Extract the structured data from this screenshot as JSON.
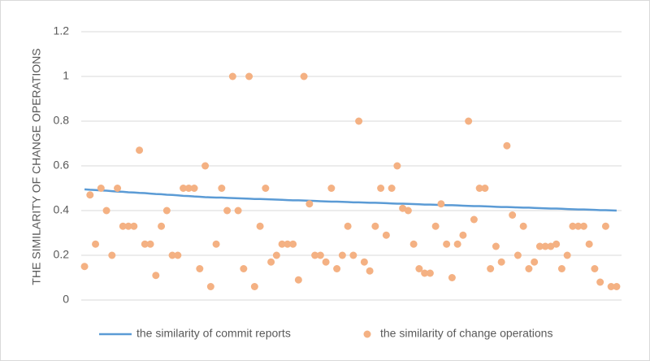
{
  "chart_data": {
    "type": "combo",
    "y_label": "THE SIMILARITY OF CHANGE OPERATIONS",
    "x": [
      1,
      2,
      3,
      4,
      5,
      6,
      7,
      8,
      9,
      10,
      11,
      12,
      13,
      14,
      15,
      16,
      17,
      18,
      19,
      20,
      21,
      22,
      23,
      24,
      25,
      26,
      27,
      28,
      29,
      30,
      31,
      32,
      33,
      34,
      35,
      36,
      37,
      38,
      39,
      40,
      41,
      42,
      43,
      44,
      45,
      46,
      47,
      48,
      49,
      50,
      51,
      52,
      53,
      54,
      55,
      56,
      57,
      58,
      59,
      60,
      61,
      62,
      63,
      64,
      65,
      66,
      67,
      68,
      69,
      70,
      71,
      72,
      73,
      74,
      75,
      76,
      77,
      78,
      79,
      80,
      81,
      82,
      83,
      84,
      85,
      86,
      87,
      88,
      89,
      90,
      91,
      92,
      93,
      94,
      95,
      96,
      97,
      98
    ],
    "xlim": [
      0.4,
      98.9
    ],
    "ylim": [
      0,
      1.2
    ],
    "yticks": [
      0,
      0.2,
      0.4,
      0.6,
      0.8,
      1,
      1.2
    ],
    "grid": true,
    "legend": "bottom",
    "series": [
      {
        "name": "the similarity of commit reports",
        "type": "line",
        "color": "#5b9bd5",
        "values": [
          0.495,
          0.493,
          0.492,
          0.49,
          0.489,
          0.487,
          0.485,
          0.484,
          0.482,
          0.481,
          0.479,
          0.478,
          0.476,
          0.474,
          0.473,
          0.471,
          0.47,
          0.468,
          0.466,
          0.465,
          0.463,
          0.462,
          0.46,
          0.459,
          0.458,
          0.458,
          0.457,
          0.456,
          0.455,
          0.454,
          0.453,
          0.452,
          0.452,
          0.451,
          0.45,
          0.449,
          0.448,
          0.447,
          0.446,
          0.446,
          0.445,
          0.444,
          0.443,
          0.442,
          0.441,
          0.44,
          0.44,
          0.439,
          0.438,
          0.437,
          0.437,
          0.436,
          0.435,
          0.435,
          0.434,
          0.433,
          0.432,
          0.431,
          0.431,
          0.43,
          0.429,
          0.428,
          0.427,
          0.427,
          0.426,
          0.425,
          0.424,
          0.424,
          0.423,
          0.422,
          0.421,
          0.42,
          0.42,
          0.419,
          0.418,
          0.417,
          0.416,
          0.416,
          0.415,
          0.414,
          0.413,
          0.413,
          0.412,
          0.411,
          0.41,
          0.409,
          0.409,
          0.408,
          0.407,
          0.406,
          0.405,
          0.405,
          0.404,
          0.403,
          0.402,
          0.402,
          0.401,
          0.4
        ]
      },
      {
        "name": "the similarity of change operations",
        "type": "scatter",
        "color": "#f4b183",
        "values": [
          0.15,
          0.47,
          0.25,
          0.5,
          0.4,
          0.2,
          0.5,
          0.33,
          0.33,
          0.33,
          0.67,
          0.25,
          0.25,
          0.11,
          0.33,
          0.4,
          0.2,
          0.2,
          0.5,
          0.5,
          0.5,
          0.14,
          0.6,
          0.06,
          0.25,
          0.5,
          0.4,
          1,
          0.4,
          0.14,
          1,
          0.06,
          0.33,
          0.5,
          0.17,
          0.2,
          0.25,
          0.25,
          0.25,
          0.09,
          1,
          0.43,
          0.2,
          0.2,
          0.17,
          0.5,
          0.14,
          0.2,
          0.33,
          0.2,
          0.8,
          0.17,
          0.13,
          0.33,
          0.5,
          0.29,
          0.5,
          0.6,
          0.41,
          0.4,
          0.25,
          0.14,
          0.12,
          0.12,
          0.33,
          0.43,
          0.25,
          0.1,
          0.25,
          0.29,
          0.8,
          0.36,
          0.5,
          0.5,
          0.14,
          0.24,
          0.17,
          0.69,
          0.38,
          0.2,
          0.33,
          0.14,
          0.17,
          0.24,
          0.24,
          0.24,
          0.25,
          0.14,
          0.2,
          0.33,
          0.33,
          0.33,
          0.25,
          0.14,
          0.08,
          0.33,
          0.06,
          0.06
        ]
      }
    ]
  }
}
